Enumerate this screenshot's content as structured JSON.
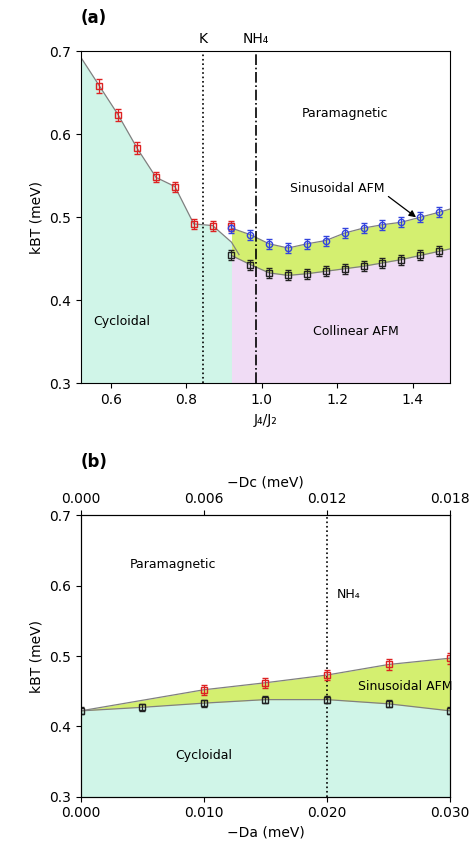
{
  "chart_data": [
    {
      "type": "scatter",
      "title": "(a)",
      "x_label": "J₄/J₂",
      "y_label": "kBT (meV)",
      "xlim": [
        0.52,
        1.5
      ],
      "ylim": [
        0.3,
        0.7
      ],
      "xticks": [
        0.6,
        0.8,
        1.0,
        1.2,
        1.4
      ],
      "yticks": [
        0.3,
        0.4,
        0.5,
        0.6,
        0.7
      ],
      "regions": [
        {
          "color": "#d0f5e8",
          "x": [
            0.52,
            0.57,
            0.62,
            0.67,
            0.72,
            0.77,
            0.82,
            0.87,
            0.92,
            0.94
          ],
          "upper": [
            0.693,
            0.658,
            0.623,
            0.583,
            0.548,
            0.537,
            0.492,
            0.49,
            0.47,
            0.455
          ]
        },
        {
          "color": "#f0dcf5",
          "x": [
            0.92,
            0.97,
            1.02,
            1.07,
            1.12,
            1.17,
            1.22,
            1.27,
            1.32,
            1.37,
            1.42,
            1.47,
            1.5
          ],
          "upper": [
            0.454,
            0.443,
            0.433,
            0.43,
            0.432,
            0.435,
            0.438,
            0.441,
            0.445,
            0.449,
            0.454,
            0.459,
            0.462
          ]
        },
        {
          "color": "#d4ef70",
          "x": [
            0.92,
            0.97,
            1.02,
            1.07,
            1.12,
            1.17,
            1.22,
            1.27,
            1.32,
            1.37,
            1.42,
            1.47,
            1.5
          ],
          "upper": [
            0.487,
            0.479,
            0.468,
            0.463,
            0.468,
            0.472,
            0.481,
            0.487,
            0.491,
            0.494,
            0.5,
            0.506,
            0.51
          ],
          "lower": [
            0.454,
            0.443,
            0.433,
            0.43,
            0.432,
            0.435,
            0.438,
            0.441,
            0.445,
            0.449,
            0.454,
            0.459,
            0.462
          ]
        }
      ],
      "vlines": [
        {
          "x": 0.845,
          "label": "K",
          "line_style": "dotted"
        },
        {
          "x": 0.985,
          "label": "NH₄",
          "line_style": "dashdot"
        }
      ],
      "series": [
        {
          "color": "#dd2222",
          "marker": "square",
          "x": [
            0.57,
            0.62,
            0.67,
            0.72,
            0.77,
            0.82,
            0.87,
            0.92
          ],
          "values": [
            0.658,
            0.623,
            0.583,
            0.548,
            0.537,
            0.492,
            0.49,
            0.489
          ],
          "errors": [
            0.008,
            0.007,
            0.007,
            0.006,
            0.006,
            0.006,
            0.006,
            0.006
          ]
        },
        {
          "color": "#3344dd",
          "marker": "circle",
          "x": [
            0.92,
            0.97,
            1.02,
            1.07,
            1.12,
            1.17,
            1.22,
            1.27,
            1.32,
            1.37,
            1.42,
            1.47
          ],
          "values": [
            0.487,
            0.479,
            0.468,
            0.463,
            0.468,
            0.472,
            0.481,
            0.487,
            0.491,
            0.494,
            0.5,
            0.506
          ],
          "errors": [
            0.006,
            0.006,
            0.006,
            0.006,
            0.006,
            0.006,
            0.006,
            0.006,
            0.006,
            0.006,
            0.006,
            0.006
          ]
        },
        {
          "color": "#222222",
          "marker": "square",
          "x": [
            0.92,
            0.97,
            1.02,
            1.07,
            1.12,
            1.17,
            1.22,
            1.27,
            1.32,
            1.37,
            1.42,
            1.47
          ],
          "values": [
            0.454,
            0.443,
            0.433,
            0.43,
            0.432,
            0.435,
            0.438,
            0.441,
            0.445,
            0.449,
            0.454,
            0.459
          ],
          "errors": [
            0.006,
            0.006,
            0.006,
            0.006,
            0.006,
            0.006,
            0.006,
            0.006,
            0.006,
            0.006,
            0.006,
            0.006
          ]
        }
      ],
      "annotations": [
        {
          "text": "Paramagnetic",
          "x": 1.22,
          "y": 0.625
        },
        {
          "text": "Cycloidal",
          "x": 0.63,
          "y": 0.375
        },
        {
          "text": "Sinusoidal AFM",
          "x": 1.2,
          "y": 0.535
        },
        {
          "text": "Collinear AFM",
          "x": 1.25,
          "y": 0.363
        }
      ],
      "arrows": [
        {
          "from": [
            1.33,
            0.527
          ],
          "to": [
            1.415,
            0.498
          ]
        }
      ]
    },
    {
      "type": "scatter",
      "title": "(b)",
      "x_label": "−Da (meV)",
      "y_label": "kBT (meV)",
      "x2_label": "−Dc (meV)",
      "xlim": [
        0.0,
        0.03
      ],
      "ylim": [
        0.3,
        0.7
      ],
      "xticks": [
        {
          "value": 0.0,
          "label": "0.000"
        },
        {
          "value": 0.01,
          "label": "0.010"
        },
        {
          "value": 0.02,
          "label": "0.020"
        },
        {
          "value": 0.03,
          "label": "0.030"
        }
      ],
      "yticks": [
        0.3,
        0.4,
        0.5,
        0.6,
        0.7
      ],
      "x2lim": [
        0.0,
        0.018
      ],
      "x2ticks": [
        {
          "value": 0.0,
          "label": "0.000"
        },
        {
          "value": 0.006,
          "label": "0.006"
        },
        {
          "value": 0.012,
          "label": "0.012"
        },
        {
          "value": 0.018,
          "label": "0.018"
        }
      ],
      "regions": [
        {
          "color": "#d0f5e8",
          "x": [
            0.0,
            0.005,
            0.01,
            0.015,
            0.02,
            0.025,
            0.03
          ],
          "upper": [
            0.422,
            0.427,
            0.433,
            0.438,
            0.438,
            0.432,
            0.422
          ]
        },
        {
          "color": "#d4ef70",
          "x": [
            0.0,
            0.01,
            0.015,
            0.02,
            0.025,
            0.03
          ],
          "upper": [
            0.422,
            0.452,
            0.462,
            0.473,
            0.488,
            0.497
          ],
          "lower": [
            0.422,
            0.433,
            0.438,
            0.438,
            0.432,
            0.422
          ]
        }
      ],
      "vlines": [
        {
          "x": 0.02,
          "line_style": "dotted"
        }
      ],
      "series": [
        {
          "color": "#dd2222",
          "marker": "square",
          "x": [
            0.01,
            0.015,
            0.02,
            0.025,
            0.03
          ],
          "values": [
            0.452,
            0.462,
            0.473,
            0.488,
            0.497
          ],
          "errors": [
            0.007,
            0.007,
            0.007,
            0.008,
            0.008
          ]
        },
        {
          "color": "#222222",
          "marker": "square",
          "x": [
            0.0,
            0.005,
            0.01,
            0.015,
            0.02,
            0.025,
            0.03
          ],
          "values": [
            0.422,
            0.427,
            0.433,
            0.438,
            0.438,
            0.432,
            0.422
          ],
          "errors": [
            0.005,
            0.005,
            0.005,
            0.005,
            0.005,
            0.005,
            0.005
          ]
        }
      ],
      "annotations": [
        {
          "text": "Paramagnetic",
          "x": 0.004,
          "y": 0.63
        },
        {
          "text": "Cycloidal",
          "x": 0.01,
          "y": 0.358
        },
        {
          "text": "Sinusoidal AFM",
          "x": 0.0225,
          "y": 0.456
        },
        {
          "text": "NH₄",
          "x": 0.0208,
          "y": 0.587
        }
      ]
    }
  ]
}
